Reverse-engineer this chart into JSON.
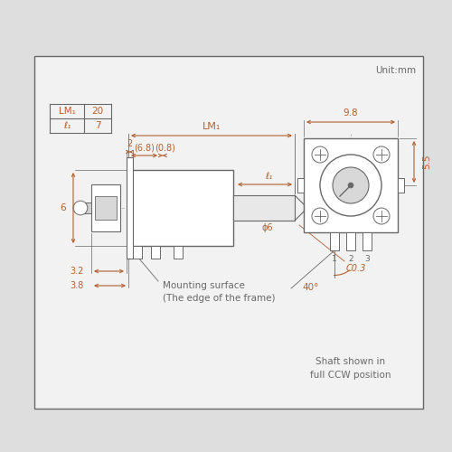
{
  "bg_color": "#dedede",
  "box_bg": "#f2f2f2",
  "line_color": "#686868",
  "dim_color": "#b06030",
  "text_color": "#686868",
  "title_text": "Unit:mm",
  "table_r0": [
    "LM₁",
    "20"
  ],
  "table_r1": [
    "ℓ₁",
    "7"
  ],
  "label_LM1": "LM₁",
  "dim_68": "(6.8)",
  "dim_08": "(0.8)",
  "dim_l1": "ℓ₁",
  "dim_phi6": "ϕ6",
  "dim_C03": "C0.3",
  "dim_2": "2",
  "dim_6": "6",
  "dim_32": "3.2",
  "dim_38": "3.8",
  "dim_98": "9.8",
  "dim_55": "5.5",
  "dim_40": "40°",
  "text_mounting": "Mounting surface",
  "text_frame": "(The edge of the frame)",
  "text_shaft1": "Shaft shown in",
  "text_shaft2": "full CCW position",
  "label_123": [
    "1",
    "2",
    "3"
  ]
}
